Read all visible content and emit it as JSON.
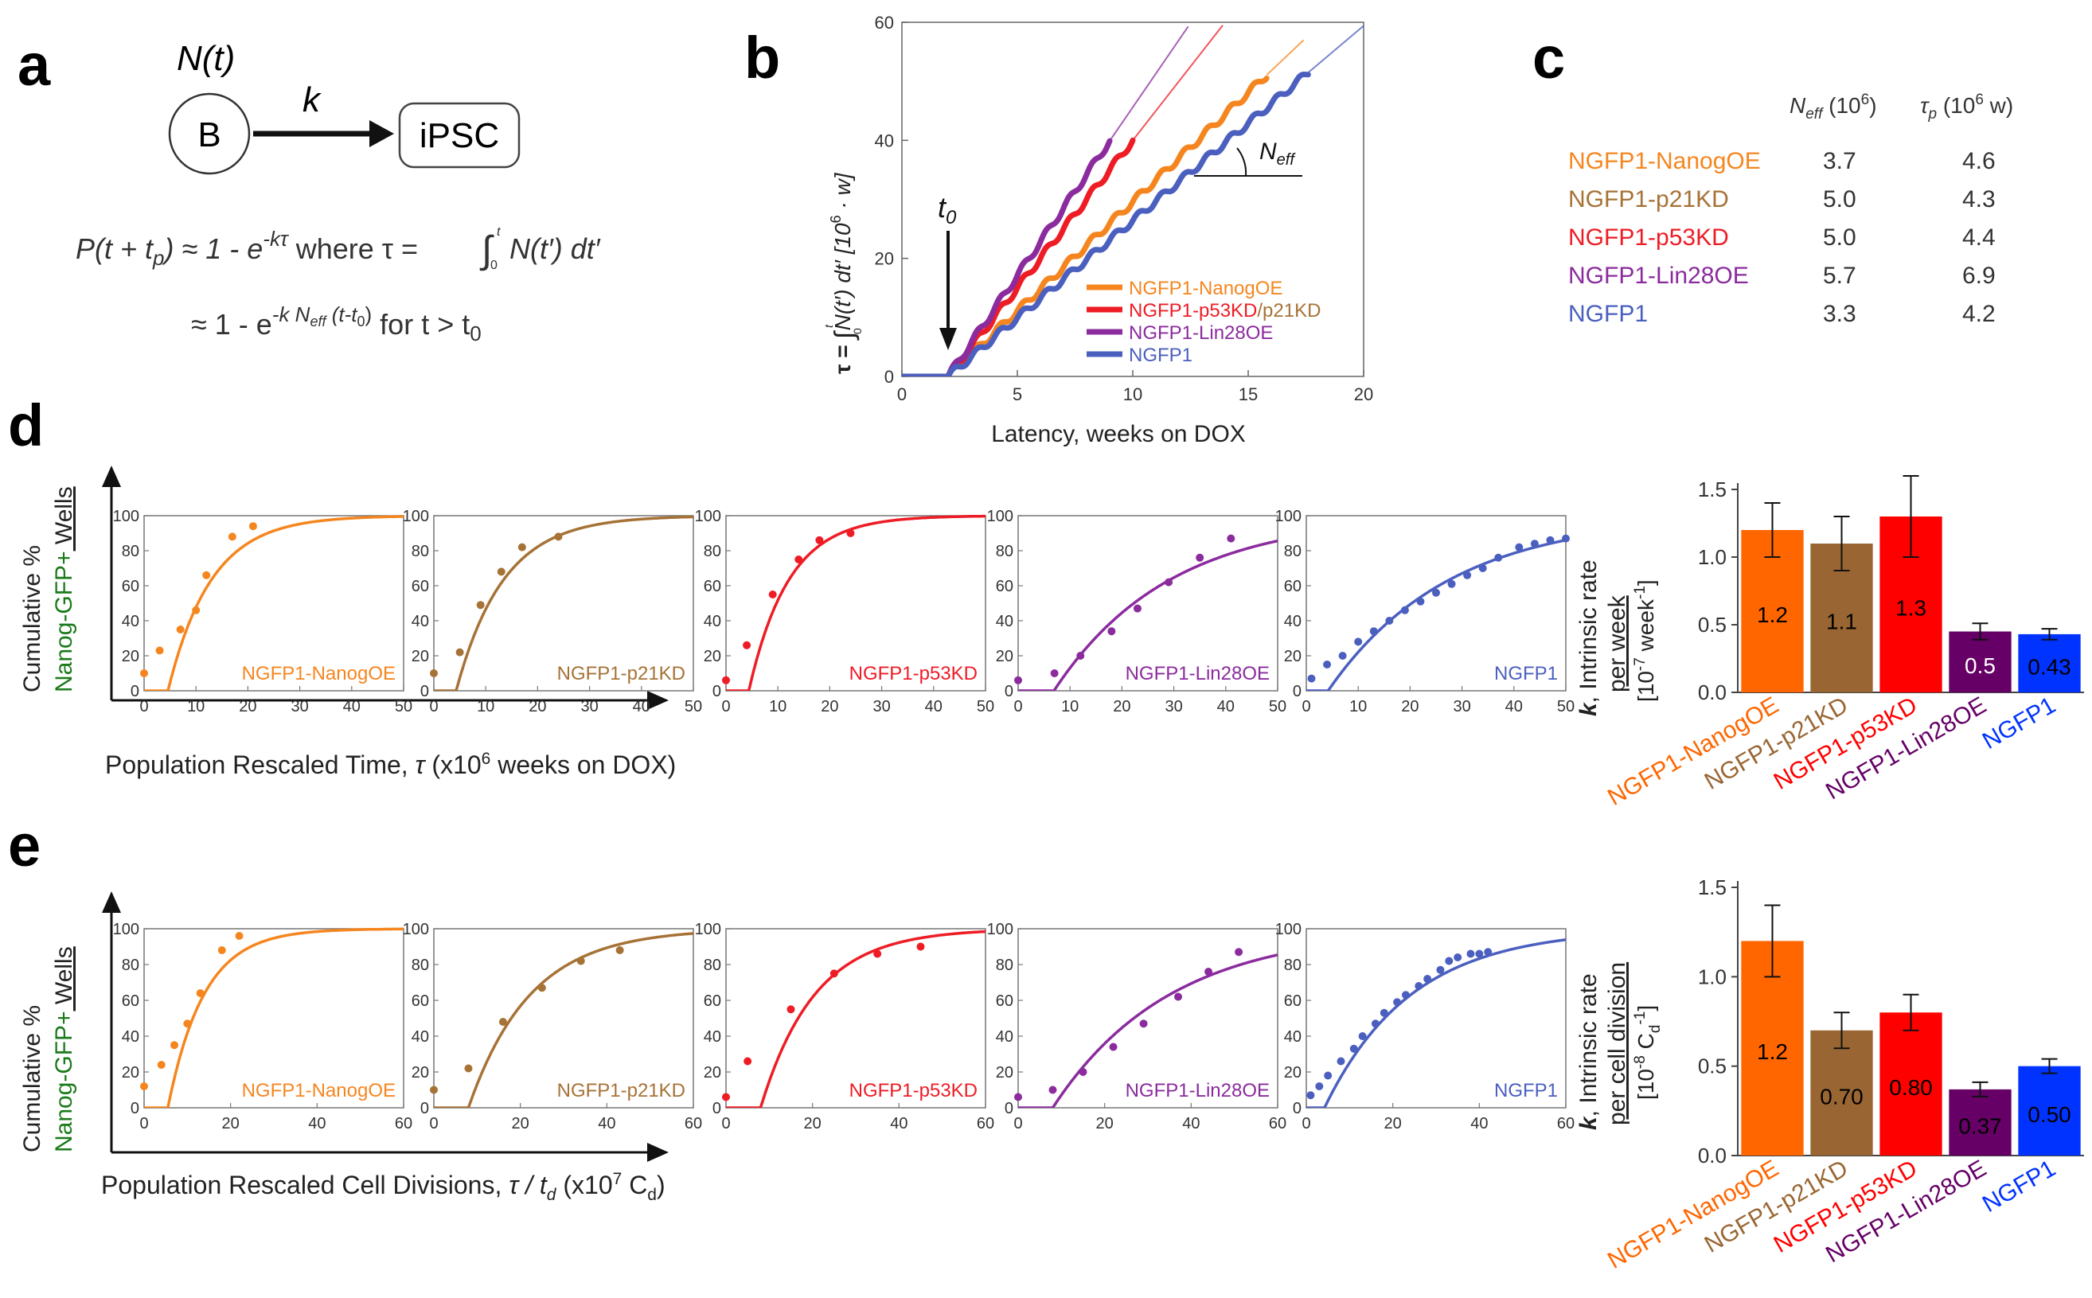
{
  "panel_letters": [
    "a",
    "b",
    "c",
    "d",
    "e"
  ],
  "colors": {
    "nanog": "#f5861f",
    "p21": "#a67236",
    "p53": "#ee1c25",
    "lin28": "#8b2b9e",
    "ngfp1": "#4b5fbf",
    "bar_nanog": "#ff6600",
    "bar_p21": "#996633",
    "bar_p53": "#ff0000",
    "bar_lin28": "#660066",
    "bar_ngfp1": "#0033ff",
    "green_label": "#1a7a1a"
  },
  "panel_a": {
    "state_label": "N(t)",
    "node_b": "B",
    "rate_label": "k",
    "node_ipsc": "iPSC",
    "eq1_left": "P(t + t",
    "eq1_left_sub": "p",
    "eq1_mid": ") ≈ 1 - e",
    "eq1_exp": "-kτ",
    "eq1_where": " where τ = ",
    "eq1_int_upper": "t",
    "eq1_int_lower": "0",
    "eq1_integrand": "N(t′) dt′",
    "eq2_left": "≈ 1 - e",
    "eq2_exp": "-k N",
    "eq2_exp_sub": "eff",
    "eq2_exp_tail": " (t-t",
    "eq2_exp_sub2": "0",
    "eq2_exp_close": ")",
    "eq2_cond": " for t > t",
    "eq2_cond_sub": "0"
  },
  "panel_b": {
    "ylabel_tau": "τ =",
    "ylabel_int": "∫",
    "ylabel_int_upper": "t",
    "ylabel_int_lower": "0",
    "ylabel_rest": "N(t′) dt′ [10",
    "ylabel_sup": "6",
    "ylabel_tail": " · w]",
    "xlabel": "Latency, weeks on DOX",
    "t0_label": "t",
    "t0_sub": "0",
    "neff_label": "N",
    "neff_sub": "eff",
    "xticks": [
      "0",
      "5",
      "10",
      "15",
      "20"
    ],
    "yticks": [
      "0",
      "20",
      "40",
      "60"
    ],
    "legend": [
      {
        "text": "NGFP1-NanogOE",
        "color": "#f5861f"
      },
      {
        "text": "NGFP1-p53KD",
        "color": "#ee1c25",
        "extra": "/p21KD",
        "extra_color": "#a67236"
      },
      {
        "text": "NGFP1-Lin28OE",
        "color": "#8b2b9e"
      },
      {
        "text": "NGFP1",
        "color": "#4b5fbf"
      }
    ]
  },
  "panel_c": {
    "header1": "N",
    "header1_sub": "eff",
    "header1_unit": " (10",
    "header1_sup": "6",
    "header1_close": ")",
    "header2": "τ",
    "header2_sub": "p",
    "header2_unit": " (10",
    "header2_sup": "6",
    "header2_close": " w)",
    "rows": [
      {
        "name": "NGFP1-NanogOE",
        "neff": "3.7",
        "taup": "4.6",
        "color": "#f5861f"
      },
      {
        "name": "NGFP1-p21KD",
        "neff": "5.0",
        "taup": "4.3",
        "color": "#a67236"
      },
      {
        "name": "NGFP1-p53KD",
        "neff": "5.0",
        "taup": "4.4",
        "color": "#ee1c25"
      },
      {
        "name": "NGFP1-Lin28OE",
        "neff": "5.7",
        "taup": "6.9",
        "color": "#8b2b9e"
      },
      {
        "name": "NGFP1",
        "neff": "3.3",
        "taup": "4.2",
        "color": "#4b5fbf"
      }
    ]
  },
  "panel_d": {
    "ylabel_line1": "Cumulative %",
    "ylabel_green": "Nanog-GFP+",
    "ylabel_wells": " Wells",
    "xlabel_text": "Population Rescaled Time, ",
    "xlabel_tau": "τ",
    "xlabel_unit": "  (x10",
    "xlabel_sup": "6",
    "xlabel_tail": " weeks on DOX)",
    "xticks": [
      "0",
      "10",
      "20",
      "30",
      "40",
      "50"
    ],
    "yticks": [
      "0",
      "20",
      "40",
      "60",
      "80",
      "100"
    ],
    "bar_ylabel_k": "k",
    "bar_ylabel_1": ", Intrinsic rate",
    "bar_ylabel_2": "per week",
    "bar_ylabel_3": "[10",
    "bar_ylabel_3_sup": "-7",
    "bar_ylabel_3_tail": " week",
    "bar_ylabel_3_sup2": "-1",
    "bar_ylabel_3_close": "]",
    "bar_yticks": [
      "0.0",
      "0.5",
      "1.0",
      "1.5"
    ]
  },
  "panel_e": {
    "ylabel_line1": "Cumulative %",
    "ylabel_green": "Nanog-GFP+",
    "ylabel_wells": " Wells",
    "xlabel_text": "Population Rescaled Cell Divisions, ",
    "xlabel_tau": "τ / t",
    "xlabel_tau_sub": "d",
    "xlabel_unit": " (x10",
    "xlabel_sup": "7",
    "xlabel_tail": " C",
    "xlabel_tail_sub": "d",
    "xlabel_close": ")",
    "xticks": [
      "0",
      "20",
      "40",
      "60"
    ],
    "yticks": [
      "0",
      "20",
      "40",
      "60",
      "80",
      "100"
    ],
    "bar_ylabel_k": "k",
    "bar_ylabel_1": ", Intrinsic rate",
    "bar_ylabel_2": "per cell division",
    "bar_ylabel_3": "[10",
    "bar_ylabel_3_sup": "-8",
    "bar_ylabel_3_tail": " C",
    "bar_ylabel_3_sub": "d",
    "bar_ylabel_3_sup2": "-1",
    "bar_ylabel_3_close": "]",
    "bar_yticks": [
      "0.0",
      "0.5",
      "1.0",
      "1.5"
    ]
  },
  "chart_data": [
    {
      "id": "b",
      "type": "line",
      "xlim": [
        0,
        20
      ],
      "ylim": [
        0,
        60
      ],
      "series": [
        {
          "name": "NGFP1-NanogOE",
          "color": "#f5861f",
          "t0": 2.0,
          "slope": 3.7,
          "end_x": 15.8,
          "extrap_to_x": 17.4,
          "wiggle": 0.6
        },
        {
          "name": "NGFP1-p53KD/p21KD",
          "color": "#ee1c25",
          "t0": 2.0,
          "slope": 5.0,
          "end_x": 10.0,
          "extrap_to_x": 13.9,
          "wiggle": 0.6
        },
        {
          "name": "NGFP1-Lin28OE",
          "color": "#8b2b9e",
          "t0": 2.0,
          "slope": 5.7,
          "end_x": 9.0,
          "extrap_to_x": 12.4,
          "wiggle": 0.6
        },
        {
          "name": "NGFP1",
          "color": "#4b5fbf",
          "t0": 2.0,
          "slope": 3.3,
          "end_x": 17.6,
          "extrap_to_x": 20.0,
          "wiggle": 0.6
        }
      ]
    },
    {
      "id": "d",
      "type": "scatter",
      "xlim": [
        0,
        50
      ],
      "ylim": [
        0,
        100
      ],
      "panels": [
        {
          "label": "NGFP1-NanogOE",
          "color": "#f5861f",
          "k": 0.12,
          "t0": 4.6,
          "points": [
            [
              0,
              10
            ],
            [
              3,
              23
            ],
            [
              7,
              35
            ],
            [
              10,
              46
            ],
            [
              12,
              66
            ],
            [
              17,
              88
            ],
            [
              21,
              94
            ]
          ]
        },
        {
          "label": "NGFP1-p21KD",
          "color": "#a67236",
          "k": 0.11,
          "t0": 4.3,
          "points": [
            [
              0,
              10
            ],
            [
              5,
              22
            ],
            [
              9,
              49
            ],
            [
              13,
              68
            ],
            [
              17,
              82
            ],
            [
              24,
              88
            ]
          ]
        },
        {
          "label": "NGFP1-p53KD",
          "color": "#ee1c25",
          "k": 0.13,
          "t0": 4.4,
          "points": [
            [
              0,
              6
            ],
            [
              4,
              26
            ],
            [
              9,
              55
            ],
            [
              14,
              75
            ],
            [
              18,
              86
            ],
            [
              24,
              90
            ]
          ]
        },
        {
          "label": "NGFP1-Lin28OE",
          "color": "#8b2b9e",
          "k": 0.045,
          "t0": 6.9,
          "points": [
            [
              0,
              6
            ],
            [
              7,
              10
            ],
            [
              12,
              20
            ],
            [
              18,
              34
            ],
            [
              23,
              47
            ],
            [
              29,
              62
            ],
            [
              35,
              76
            ],
            [
              41,
              87
            ]
          ]
        },
        {
          "label": "NGFP1",
          "color": "#4b5fbf",
          "k": 0.043,
          "t0": 4.2,
          "points": [
            [
              1,
              7
            ],
            [
              4,
              15
            ],
            [
              7,
              20
            ],
            [
              10,
              28
            ],
            [
              13,
              34
            ],
            [
              16,
              40
            ],
            [
              19,
              46
            ],
            [
              22,
              51
            ],
            [
              25,
              56
            ],
            [
              28,
              61
            ],
            [
              31,
              66
            ],
            [
              34,
              70
            ],
            [
              37,
              76
            ],
            [
              41,
              82
            ],
            [
              44,
              84
            ],
            [
              47,
              86
            ],
            [
              50,
              87
            ]
          ]
        }
      ],
      "bars": {
        "ylim": [
          0,
          1.5
        ],
        "categories": [
          "NGFP1-NanogOE",
          "NGFP1-p21KD",
          "NGFP1-p53KD",
          "NGFP1-Lin28OE",
          "NGFP1"
        ],
        "values": [
          1.2,
          1.1,
          1.3,
          0.45,
          0.43
        ],
        "labels": [
          "1.2",
          "1.1",
          "1.3",
          "0.5",
          "0.43"
        ],
        "errors": [
          0.2,
          0.2,
          0.3,
          0.06,
          0.04
        ],
        "label_colors": [
          "#000000",
          "#000000",
          "#000000",
          "#ffffff",
          "#000000"
        ]
      }
    },
    {
      "id": "e",
      "type": "scatter",
      "xlim": [
        0,
        60
      ],
      "ylim": [
        0,
        100
      ],
      "panels": [
        {
          "label": "NGFP1-NanogOE",
          "color": "#f5861f",
          "k": 0.12,
          "t0": 5.5,
          "points": [
            [
              0,
              12
            ],
            [
              4,
              24
            ],
            [
              7,
              35
            ],
            [
              10,
              47
            ],
            [
              13,
              64
            ],
            [
              18,
              88
            ],
            [
              22,
              96
            ]
          ]
        },
        {
          "label": "NGFP1-p21KD",
          "color": "#a67236",
          "k": 0.07,
          "t0": 8.0,
          "points": [
            [
              0,
              10
            ],
            [
              8,
              22
            ],
            [
              16,
              48
            ],
            [
              25,
              67
            ],
            [
              34,
              82
            ],
            [
              43,
              88
            ]
          ]
        },
        {
          "label": "NGFP1-p53KD",
          "color": "#ee1c25",
          "k": 0.08,
          "t0": 8.0,
          "points": [
            [
              0,
              6
            ],
            [
              5,
              26
            ],
            [
              15,
              55
            ],
            [
              25,
              75
            ],
            [
              35,
              86
            ],
            [
              45,
              90
            ]
          ]
        },
        {
          "label": "NGFP1-Lin28OE",
          "color": "#8b2b9e",
          "k": 0.037,
          "t0": 8.0,
          "points": [
            [
              0,
              6
            ],
            [
              8,
              10
            ],
            [
              15,
              20
            ],
            [
              22,
              34
            ],
            [
              29,
              47
            ],
            [
              37,
              62
            ],
            [
              44,
              76
            ],
            [
              51,
              87
            ]
          ]
        },
        {
          "label": "NGFP1",
          "color": "#4b5fbf",
          "k": 0.05,
          "t0": 4.2,
          "points": [
            [
              1,
              7
            ],
            [
              3,
              12
            ],
            [
              5,
              18
            ],
            [
              8,
              26
            ],
            [
              11,
              33
            ],
            [
              13,
              40
            ],
            [
              16,
              47
            ],
            [
              18,
              53
            ],
            [
              21,
              59
            ],
            [
              23,
              63
            ],
            [
              26,
              68
            ],
            [
              28,
              72
            ],
            [
              31,
              77
            ],
            [
              33,
              82
            ],
            [
              35,
              84
            ],
            [
              38,
              86
            ],
            [
              40,
              86
            ],
            [
              42,
              87
            ]
          ]
        }
      ],
      "bars": {
        "ylim": [
          0,
          1.5
        ],
        "categories": [
          "NGFP1-NanogOE",
          "NGFP1-p21KD",
          "NGFP1-p53KD",
          "NGFP1-Lin28OE",
          "NGFP1"
        ],
        "values": [
          1.2,
          0.7,
          0.8,
          0.37,
          0.5
        ],
        "labels": [
          "1.2",
          "0.70",
          "0.80",
          "0.37",
          "0.50"
        ],
        "errors": [
          0.2,
          0.1,
          0.1,
          0.04,
          0.04
        ],
        "label_colors": [
          "#000000",
          "#000000",
          "#000000",
          "#000000",
          "#000000"
        ]
      }
    }
  ]
}
